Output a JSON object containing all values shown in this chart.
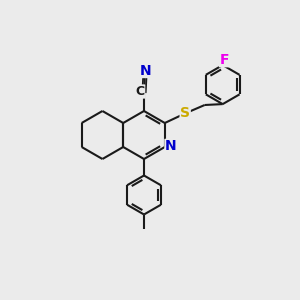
{
  "background_color": "#ebebeb",
  "bond_color": "#1a1a1a",
  "bond_width": 1.5,
  "atom_colors": {
    "N": "#0000cc",
    "S": "#ccaa00",
    "F": "#ee00ee",
    "C": "#1a1a1a"
  },
  "figsize": [
    3.0,
    3.0
  ],
  "dpi": 100
}
